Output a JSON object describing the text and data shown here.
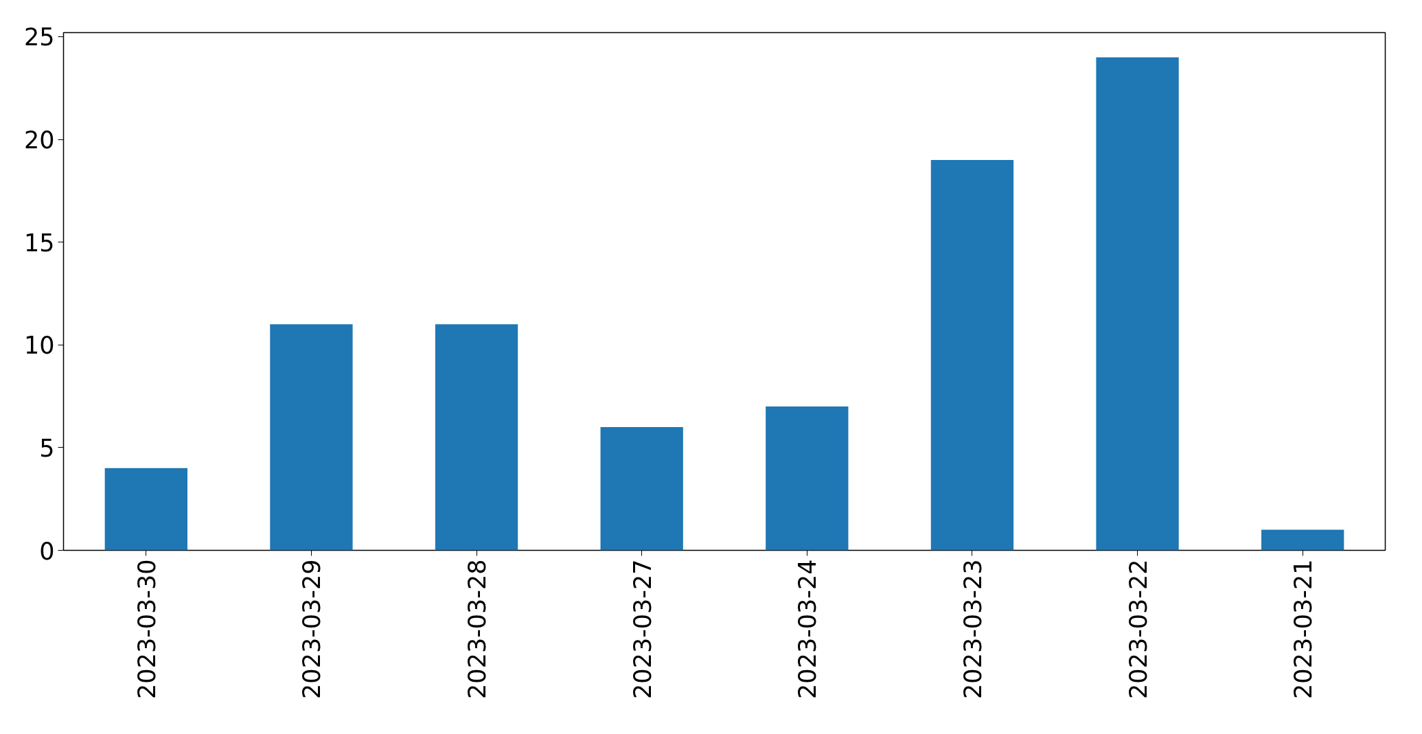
{
  "chart_data": {
    "type": "bar",
    "categories": [
      "2023-03-30",
      "2023-03-29",
      "2023-03-28",
      "2023-03-27",
      "2023-03-24",
      "2023-03-23",
      "2023-03-22",
      "2023-03-21"
    ],
    "values": [
      4,
      11,
      11,
      6,
      7,
      19,
      24,
      1
    ],
    "color": "#1f77b4",
    "ylim": [
      0,
      25.2
    ],
    "yticks": [
      0,
      5,
      10,
      15,
      20,
      25
    ]
  }
}
